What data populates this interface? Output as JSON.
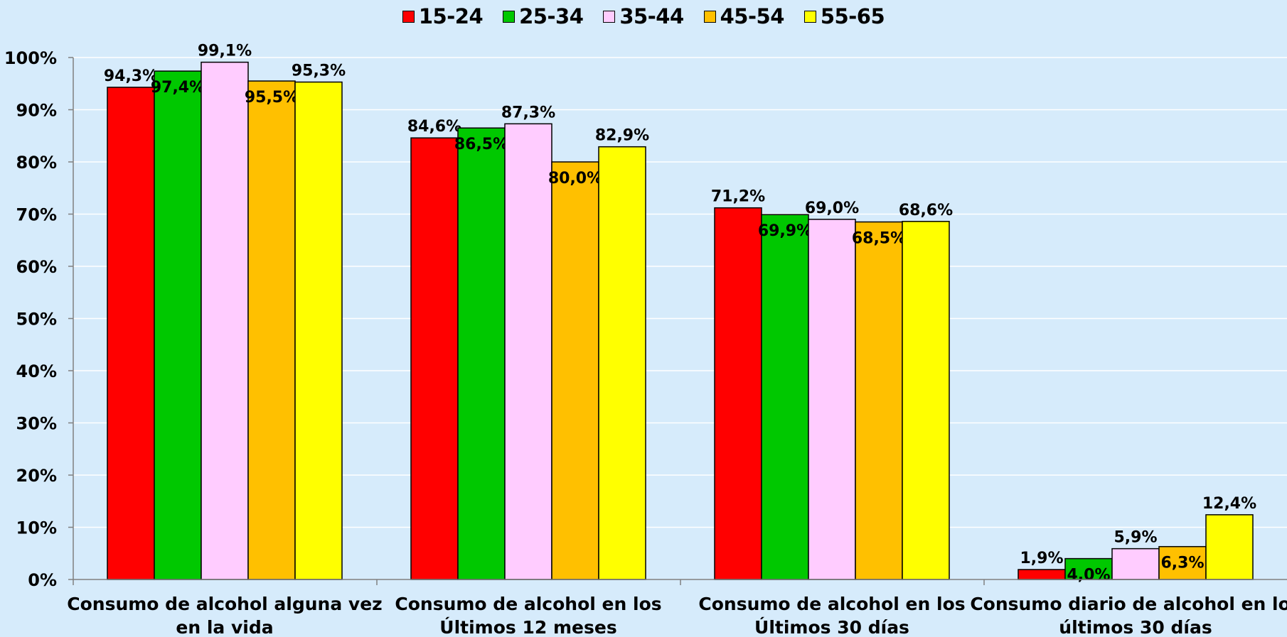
{
  "chart_data": {
    "type": "bar",
    "title": "",
    "xlabel": "",
    "ylabel": "",
    "ylim": [
      0,
      1
    ],
    "y_ticks": [
      0,
      0.1,
      0.2,
      0.3,
      0.4,
      0.5,
      0.6,
      0.7,
      0.8,
      0.9,
      1.0
    ],
    "y_tick_labels": [
      "0%",
      "10%",
      "20%",
      "30%",
      "40%",
      "50%",
      "60%",
      "70%",
      "80%",
      "90%",
      "100%"
    ],
    "grid": "horizontal",
    "legend_position": "top-center",
    "categories": [
      [
        "Consumo de alcohol alguna vez",
        "en la vida"
      ],
      [
        "Consumo de alcohol en los",
        "Últimos 12 meses"
      ],
      [
        "Consumo de alcohol en los",
        "Últimos 30 días"
      ],
      [
        "Consumo diario de alcohol en los",
        "últimos 30 días"
      ]
    ],
    "series": [
      {
        "name": "15-24",
        "color": "#ff0000",
        "values": [
          0.943,
          0.846,
          0.712,
          0.019
        ],
        "labels": [
          "94,3%",
          "84,6%",
          "71,2%",
          "1,9%"
        ],
        "label_position": [
          "above",
          "above",
          "above",
          "above"
        ]
      },
      {
        "name": "25-34",
        "color": "#00c800",
        "values": [
          0.974,
          0.865,
          0.699,
          0.04
        ],
        "labels": [
          "97,4%",
          "86,5%",
          "69,9%",
          "4,0%"
        ],
        "label_position": [
          "below",
          "below",
          "below",
          "below"
        ]
      },
      {
        "name": "35-44",
        "color": "#ffccff",
        "values": [
          0.991,
          0.873,
          0.69,
          0.059
        ],
        "labels": [
          "99,1%",
          "87,3%",
          "69,0%",
          "5,9%"
        ],
        "label_position": [
          "above",
          "above",
          "above",
          "above"
        ]
      },
      {
        "name": "45-54",
        "color": "#ffc000",
        "values": [
          0.955,
          0.8,
          0.685,
          0.063
        ],
        "labels": [
          "95,5%",
          "80,0%",
          "68,5%",
          "6,3%"
        ],
        "label_position": [
          "below",
          "below",
          "below",
          "below"
        ]
      },
      {
        "name": "55-65",
        "color": "#ffff00",
        "values": [
          0.953,
          0.829,
          0.686,
          0.124
        ],
        "labels": [
          "95,3%",
          "82,9%",
          "68,6%",
          "12,4%"
        ],
        "label_position": [
          "above",
          "above",
          "above",
          "above"
        ]
      }
    ]
  }
}
